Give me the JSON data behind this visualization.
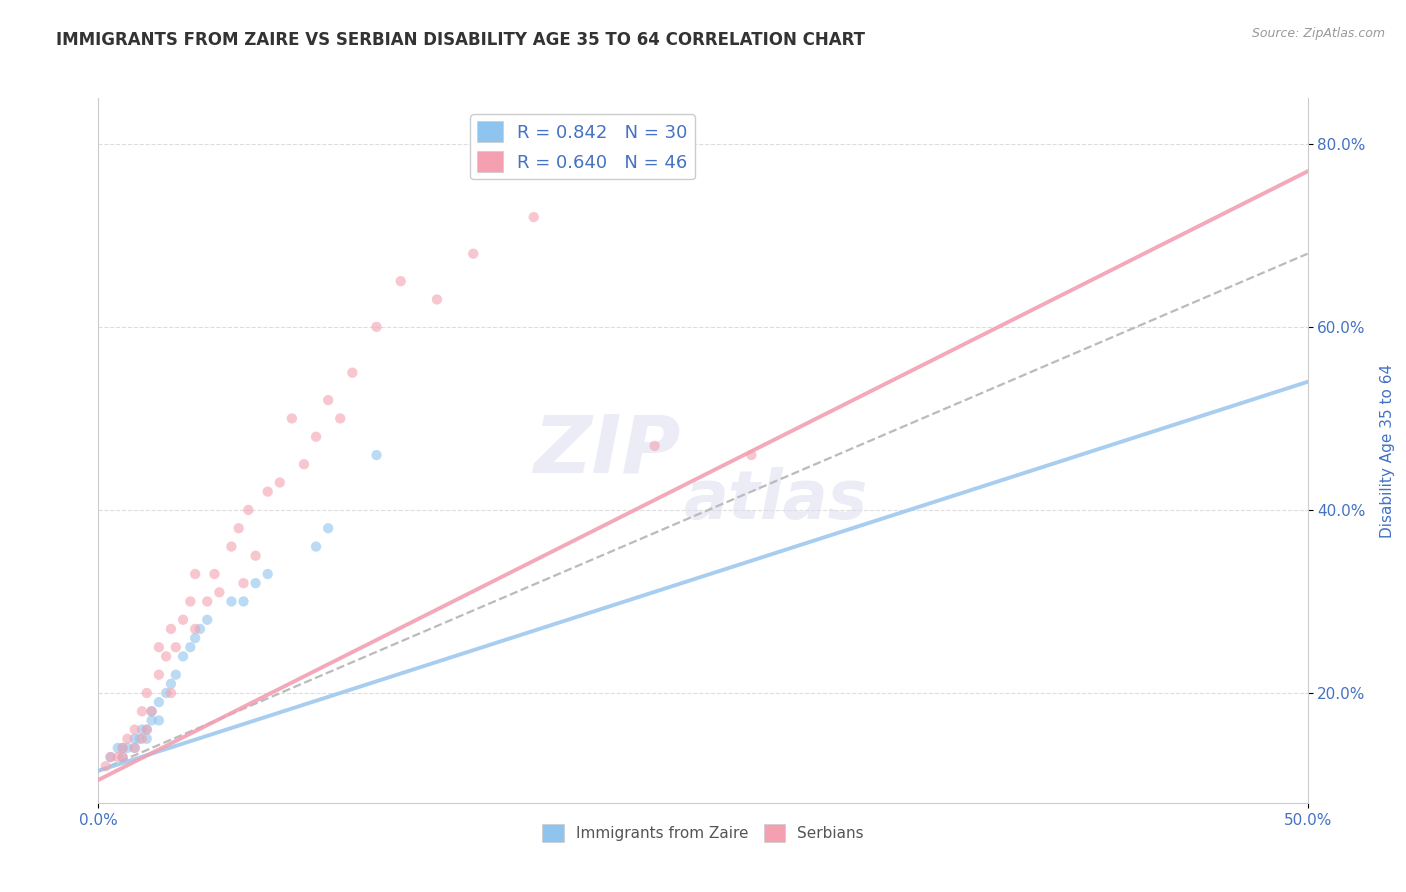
{
  "title": "IMMIGRANTS FROM ZAIRE VS SERBIAN DISABILITY AGE 35 TO 64 CORRELATION CHART",
  "source": "Source: ZipAtlas.com",
  "ylabel": "Disability Age 35 to 64",
  "xlim": [
    0.0,
    0.5
  ],
  "ylim": [
    0.08,
    0.85
  ],
  "xtick_positions": [
    0.0,
    0.5
  ],
  "xtick_labels": [
    "0.0%",
    "50.0%"
  ],
  "ytick_values": [
    0.2,
    0.4,
    0.6,
    0.8
  ],
  "ytick_labels": [
    "20.0%",
    "40.0%",
    "60.0%",
    "80.0%"
  ],
  "legend_entry1": "R = 0.842   N = 30",
  "legend_entry2": "R = 0.640   N = 46",
  "color_blue": "#8EC4ED",
  "color_pink": "#F4A0B0",
  "color_blue_line": "#9EC8EE",
  "color_pink_line": "#F2A0B2",
  "color_dashed_line": "#BBBBBB",
  "title_color": "#333333",
  "axis_label_color": "#4472C4",
  "legend_text_color": "#4472C4",
  "background_color": "#FFFFFF",
  "grid_color": "#DDDDDD",
  "title_fontsize": 12,
  "axis_label_fontsize": 11,
  "tick_label_fontsize": 11,
  "legend_fontsize": 13,
  "scatter_size": 55,
  "scatter_alpha": 0.6,
  "line_width": 2.8,
  "blue_scatter_x": [
    0.005,
    0.008,
    0.01,
    0.01,
    0.012,
    0.015,
    0.015,
    0.017,
    0.018,
    0.02,
    0.02,
    0.022,
    0.022,
    0.025,
    0.025,
    0.028,
    0.03,
    0.032,
    0.035,
    0.038,
    0.04,
    0.042,
    0.045,
    0.055,
    0.06,
    0.065,
    0.07,
    0.09,
    0.095,
    0.115
  ],
  "blue_scatter_y": [
    0.13,
    0.14,
    0.13,
    0.14,
    0.14,
    0.14,
    0.15,
    0.15,
    0.16,
    0.15,
    0.16,
    0.17,
    0.18,
    0.17,
    0.19,
    0.2,
    0.21,
    0.22,
    0.24,
    0.25,
    0.26,
    0.27,
    0.28,
    0.3,
    0.3,
    0.32,
    0.33,
    0.36,
    0.38,
    0.46
  ],
  "pink_scatter_x": [
    0.003,
    0.005,
    0.008,
    0.01,
    0.01,
    0.012,
    0.015,
    0.015,
    0.018,
    0.018,
    0.02,
    0.02,
    0.022,
    0.025,
    0.025,
    0.028,
    0.03,
    0.03,
    0.032,
    0.035,
    0.038,
    0.04,
    0.04,
    0.045,
    0.048,
    0.05,
    0.055,
    0.058,
    0.06,
    0.062,
    0.065,
    0.07,
    0.075,
    0.08,
    0.085,
    0.09,
    0.095,
    0.1,
    0.105,
    0.115,
    0.125,
    0.14,
    0.155,
    0.18,
    0.23,
    0.27
  ],
  "pink_scatter_y": [
    0.12,
    0.13,
    0.13,
    0.13,
    0.14,
    0.15,
    0.14,
    0.16,
    0.15,
    0.18,
    0.16,
    0.2,
    0.18,
    0.22,
    0.25,
    0.24,
    0.2,
    0.27,
    0.25,
    0.28,
    0.3,
    0.27,
    0.33,
    0.3,
    0.33,
    0.31,
    0.36,
    0.38,
    0.32,
    0.4,
    0.35,
    0.42,
    0.43,
    0.5,
    0.45,
    0.48,
    0.52,
    0.5,
    0.55,
    0.6,
    0.65,
    0.63,
    0.68,
    0.72,
    0.47,
    0.46
  ],
  "blue_line_x": [
    0.0,
    0.5
  ],
  "blue_line_y": [
    0.115,
    0.54
  ],
  "pink_line_x": [
    0.0,
    0.5
  ],
  "pink_line_y": [
    0.105,
    0.77
  ],
  "dashed_line_x": [
    0.0,
    0.5
  ],
  "dashed_line_y": [
    0.115,
    0.68
  ]
}
